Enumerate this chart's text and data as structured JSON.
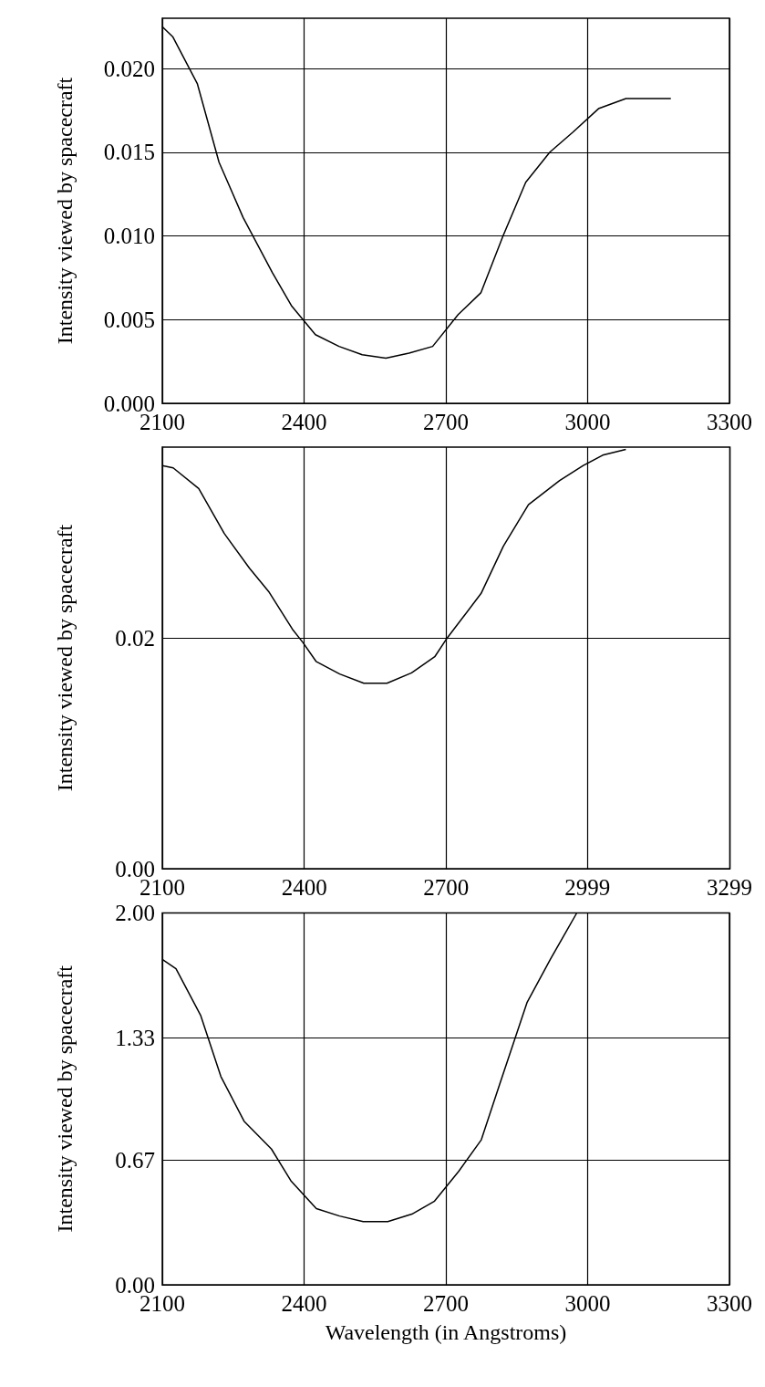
{
  "chart_data": [
    {
      "type": "line",
      "ylabel": "Intensity viewed by spacecraft",
      "xlim": [
        2100,
        3300
      ],
      "xticks": [
        2100,
        2400,
        2700,
        3000,
        3300
      ],
      "ylim": [
        0,
        0.023
      ],
      "yticks": [
        {
          "value": 0,
          "label": "0.000"
        },
        {
          "value": 0.005,
          "label": "0.005"
        },
        {
          "value": 0.01,
          "label": "0.010"
        },
        {
          "value": 0.015,
          "label": "0.015"
        },
        {
          "value": 0.02,
          "label": "0.020"
        }
      ],
      "grid": true,
      "marker": "none",
      "line_style": "solid",
      "series": [
        {
          "color": "#000000",
          "x": [
            2100,
            2122,
            2174,
            2220,
            2271,
            2333,
            2374,
            2424,
            2474,
            2523,
            2573,
            2622,
            2672,
            2726,
            2774,
            2821,
            2869,
            2920,
            2969,
            3023,
            3081,
            3126,
            3176
          ],
          "values": [
            0.0225,
            0.0219,
            0.0191,
            0.0144,
            0.0111,
            0.0078,
            0.0058,
            0.0041,
            0.0034,
            0.0029,
            0.0027,
            0.003,
            0.0034,
            0.0053,
            0.0066,
            0.01,
            0.0132,
            0.015,
            0.0162,
            0.0176,
            0.0182,
            0.0182,
            0.0182
          ]
        }
      ]
    },
    {
      "type": "line",
      "ylabel": "Intensity viewed by spacecraft",
      "xlim": [
        2100,
        3300
      ],
      "xticks": [
        2100,
        2400,
        2700,
        2999,
        3299
      ],
      "ylim": [
        0,
        0.0366
      ],
      "yticks": [
        {
          "value": 0,
          "label": "0.00"
        },
        {
          "value": 0.02,
          "label": "0.02"
        }
      ],
      "grid": true,
      "marker": "none",
      "line_style": "solid",
      "series": [
        {
          "color": "#000000",
          "x": [
            2100,
            2123,
            2177,
            2231,
            2284,
            2326,
            2375,
            2398,
            2425,
            2475,
            2526,
            2575,
            2627,
            2676,
            2700,
            2774,
            2821,
            2874,
            2940,
            2990,
            3031,
            3080
          ],
          "values": [
            0.035,
            0.0348,
            0.033,
            0.0291,
            0.0261,
            0.024,
            0.0208,
            0.0196,
            0.018,
            0.0169,
            0.0161,
            0.0161,
            0.017,
            0.0184,
            0.0199,
            0.0239,
            0.028,
            0.0316,
            0.0337,
            0.035,
            0.0359,
            0.0364
          ]
        }
      ]
    },
    {
      "type": "line",
      "ylabel": "Intensity viewed by spacecraft",
      "xlabel": "Wavelength (in Angstroms)",
      "xlim": [
        2100,
        3300
      ],
      "xticks": [
        2100,
        2400,
        2700,
        3000,
        3300
      ],
      "ylim": [
        0,
        2
      ],
      "yticks": [
        {
          "value": 0,
          "label": "0.00"
        },
        {
          "value": 0.67,
          "label": "0.67"
        },
        {
          "value": 1.33,
          "label": "1.33"
        },
        {
          "value": 2,
          "label": "2.00"
        }
      ],
      "grid": true,
      "marker": "none",
      "line_style": "solid",
      "series": [
        {
          "color": "#000000",
          "x": [
            2100,
            2129,
            2181,
            2224,
            2273,
            2331,
            2372,
            2426,
            2475,
            2525,
            2577,
            2628,
            2676,
            2727,
            2775,
            2814,
            2872,
            2921,
            2977
          ],
          "values": [
            1.75,
            1.7,
            1.45,
            1.12,
            0.88,
            0.73,
            0.56,
            0.41,
            0.37,
            0.34,
            0.34,
            0.38,
            0.45,
            0.61,
            0.78,
            1.08,
            1.52,
            1.75,
            2.0
          ]
        }
      ]
    }
  ]
}
